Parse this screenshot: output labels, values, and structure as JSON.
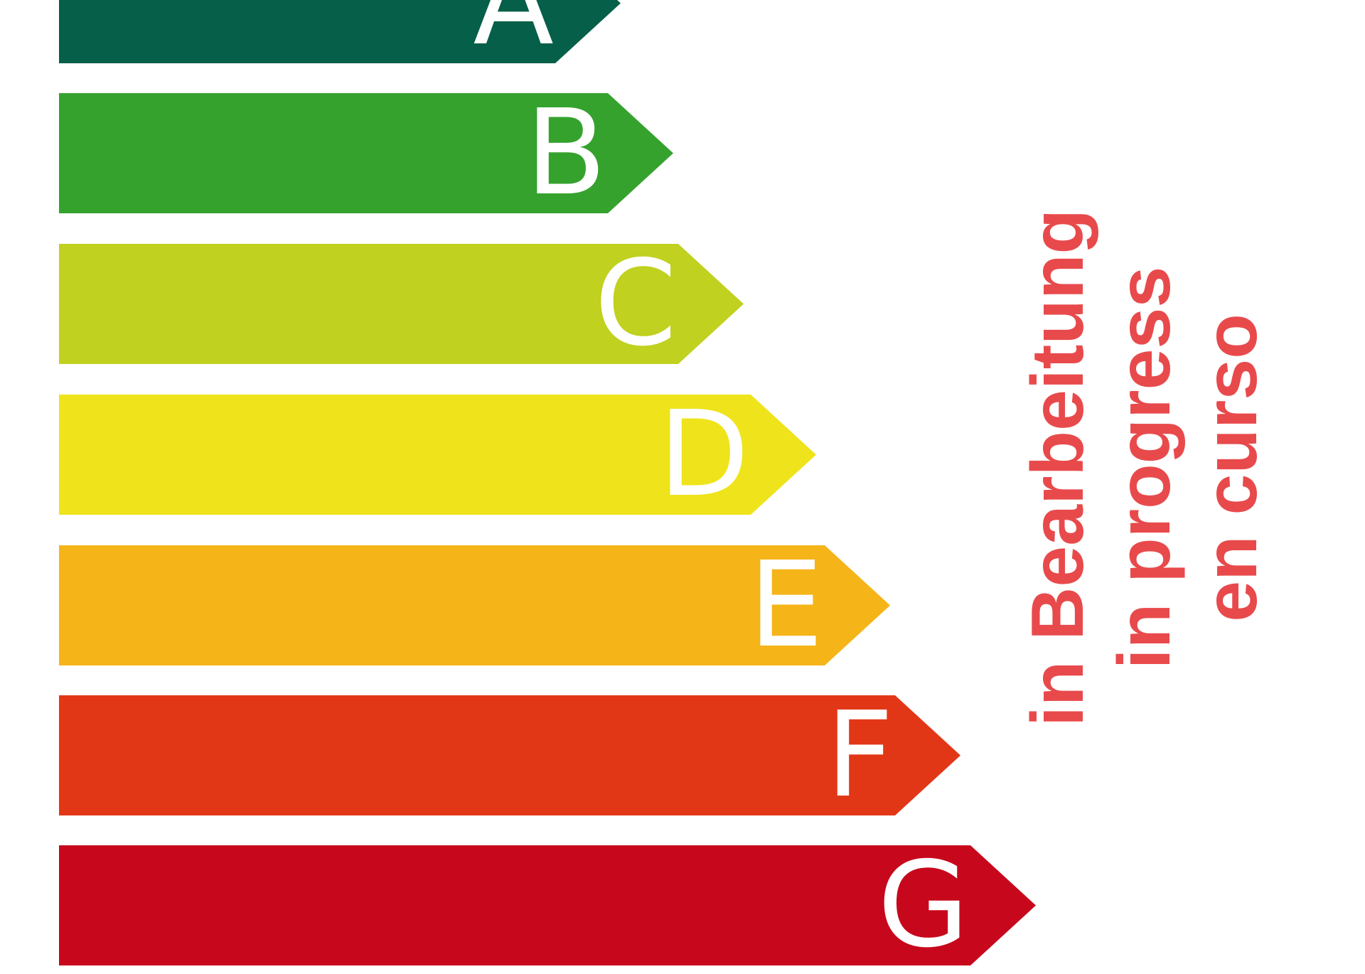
{
  "energy_label": {
    "classes": [
      {
        "label": "A",
        "color": "#065f48"
      },
      {
        "label": "B",
        "color": "#36a22e"
      },
      {
        "label": "C",
        "color": "#c0d11f"
      },
      {
        "label": "D",
        "color": "#efe31b"
      },
      {
        "label": "E",
        "color": "#f5b418"
      },
      {
        "label": "F",
        "color": "#e23717"
      },
      {
        "label": "G",
        "color": "#c7081c"
      }
    ]
  },
  "status": {
    "lines": [
      "in Bearbeitung",
      "in progress",
      "en curso"
    ],
    "color": "#e84a4c"
  }
}
